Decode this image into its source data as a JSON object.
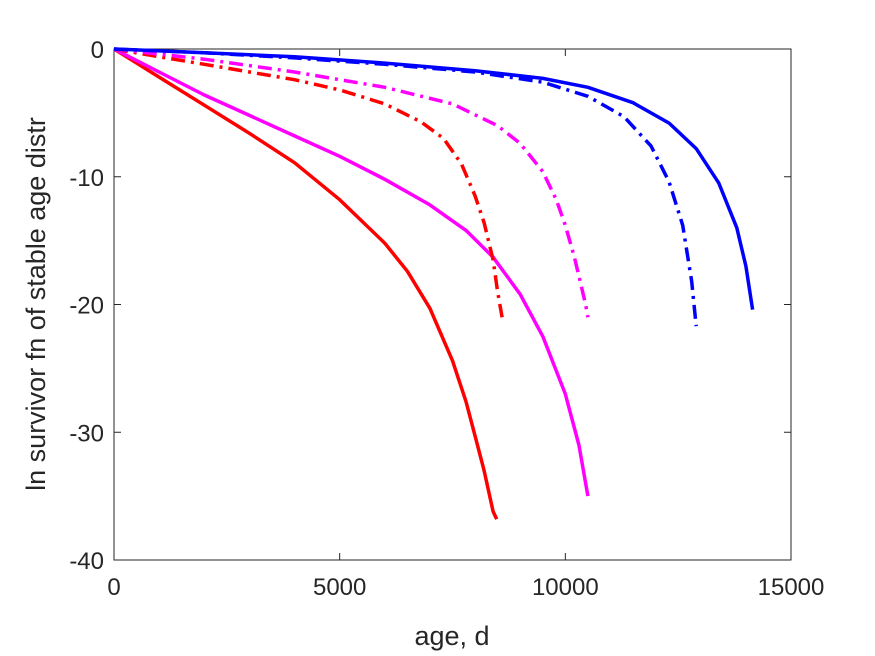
{
  "chart_data": {
    "type": "line",
    "title": "",
    "xlabel": "age, d",
    "ylabel": "ln survivor fn of stable age distr",
    "xlim": [
      0,
      15000
    ],
    "ylim": [
      -40,
      0
    ],
    "xticks": [
      0,
      5000,
      10000,
      15000
    ],
    "yticks": [
      -40,
      -30,
      -20,
      -10,
      0
    ],
    "grid": false,
    "series": [
      {
        "color": "#ff0000",
        "style": "solid",
        "x": [
          0,
          1000,
          2000,
          3000,
          4000,
          5000,
          6000,
          6500,
          7000,
          7500,
          7800,
          8000,
          8200,
          8400,
          8480
        ],
        "y": [
          0,
          -2.2,
          -4.4,
          -6.6,
          -8.9,
          -11.8,
          -15.2,
          -17.4,
          -20.3,
          -24.4,
          -27.6,
          -30.3,
          -33.0,
          -36.2,
          -36.8
        ]
      },
      {
        "color": "#ff00ff",
        "style": "solid",
        "x": [
          0,
          1000,
          2000,
          3000,
          4000,
          5000,
          6000,
          7000,
          7800,
          8400,
          9000,
          9500,
          10000,
          10300,
          10500
        ],
        "y": [
          0,
          -1.8,
          -3.6,
          -5.2,
          -6.8,
          -8.4,
          -10.2,
          -12.2,
          -14.2,
          -16.3,
          -19.2,
          -22.5,
          -27.0,
          -31.0,
          -35.0
        ]
      },
      {
        "color": "#ff0000",
        "style": "dashdot",
        "x": [
          0,
          1000,
          2000,
          3000,
          4000,
          5000,
          6000,
          6800,
          7300,
          7700,
          8000,
          8200,
          8400,
          8500,
          8600
        ],
        "y": [
          0,
          -0.6,
          -1.2,
          -1.8,
          -2.4,
          -3.2,
          -4.3,
          -5.7,
          -7.0,
          -9.0,
          -11.5,
          -13.6,
          -16.5,
          -19.0,
          -21.0
        ]
      },
      {
        "color": "#ff00ff",
        "style": "dashdot",
        "x": [
          0,
          2000,
          4000,
          6000,
          7500,
          8500,
          9000,
          9500,
          9800,
          10000,
          10200,
          10350,
          10450,
          10500
        ],
        "y": [
          0,
          -0.8,
          -1.8,
          -3.0,
          -4.3,
          -6.0,
          -7.4,
          -9.6,
          -11.8,
          -13.8,
          -16.3,
          -18.5,
          -20.0,
          -21.0
        ]
      },
      {
        "color": "#0000ff",
        "style": "dashdot",
        "x": [
          0,
          2000,
          4000,
          6000,
          8000,
          9500,
          10500,
          11300,
          11900,
          12300,
          12600,
          12800,
          12900
        ],
        "y": [
          0,
          -0.3,
          -0.7,
          -1.2,
          -1.8,
          -2.6,
          -3.7,
          -5.3,
          -7.6,
          -10.4,
          -13.8,
          -18.2,
          -21.7
        ]
      },
      {
        "color": "#0000ff",
        "style": "solid",
        "x": [
          0,
          2000,
          4000,
          6000,
          8000,
          9500,
          10500,
          11500,
          12300,
          12900,
          13400,
          13800,
          14000,
          14150
        ],
        "y": [
          0,
          -0.3,
          -0.6,
          -1.1,
          -1.7,
          -2.3,
          -3.0,
          -4.2,
          -5.8,
          -7.8,
          -10.5,
          -14.0,
          -17.0,
          -20.4
        ]
      }
    ]
  }
}
